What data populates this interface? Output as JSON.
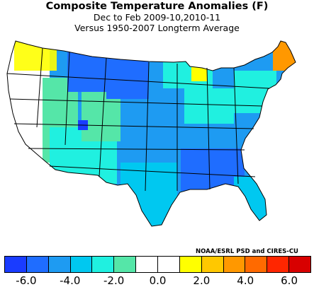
{
  "title": "Composite Temperature Anomalies (F)",
  "period": "Dec to Feb  2009-10,2010-11",
  "baseline": "Versus 1950-2007 Longterm Average",
  "credit": "NOAA/ESRL PSD and CIRES-CU",
  "colorbar": {
    "colors": [
      "#1a3cff",
      "#1f6dff",
      "#1e9bf2",
      "#00c8f0",
      "#20f0e0",
      "#55e6a8",
      "#ffffff",
      "#ffffff",
      "#ffff00",
      "#ffc800",
      "#ff9800",
      "#ff6a00",
      "#ff2600",
      "#d80000"
    ],
    "tick_labels": [
      "-6.0",
      "-4.0",
      "-2.0",
      "0.0",
      "2.0",
      "4.0",
      "6.0"
    ]
  },
  "map": {
    "land_fill": "#1e9bf2",
    "regions": [
      {
        "name": "northern-rockies",
        "color": "#1f6dff"
      },
      {
        "name": "northern-plains",
        "color": "#1e9bf2"
      },
      {
        "name": "southern-rockies",
        "color": "#55e6a8"
      },
      {
        "name": "southeast",
        "color": "#1f6dff"
      },
      {
        "name": "maine",
        "color": "#ff9800"
      },
      {
        "name": "pacific-nw-warm",
        "color": "#ffff00"
      }
    ]
  }
}
